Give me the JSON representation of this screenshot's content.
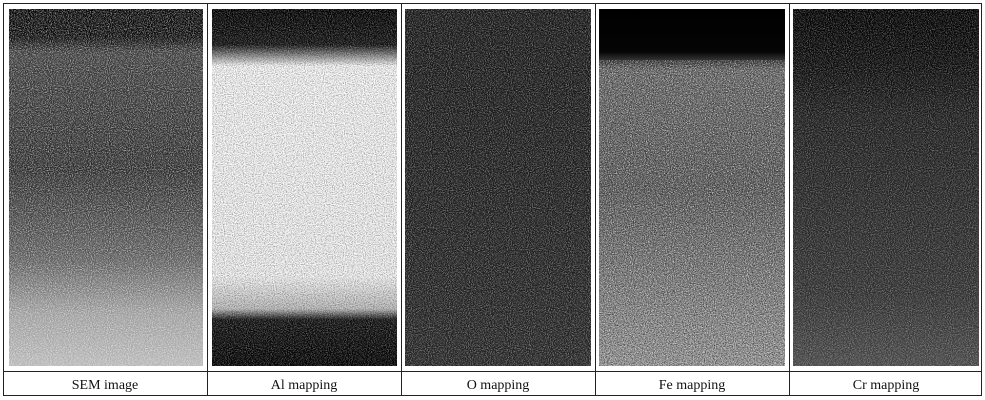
{
  "panels": [
    {
      "caption": "SEM image"
    },
    {
      "caption": "Al mapping"
    },
    {
      "caption": "O mapping"
    },
    {
      "caption": "Fe mapping"
    },
    {
      "caption": "Cr mapping"
    }
  ]
}
